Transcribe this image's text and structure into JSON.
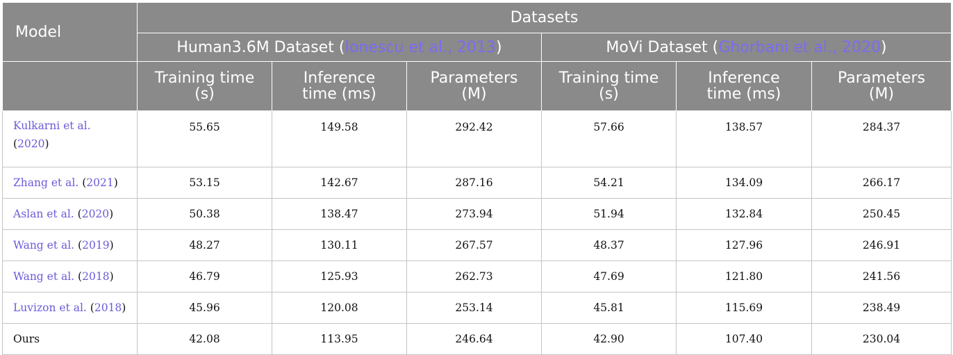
{
  "header": {
    "model_label": "Model",
    "datasets_label": "Datasets",
    "groups": [
      {
        "name": "Human3.6M Dataset",
        "cite": "Ionescu et al., 2013"
      },
      {
        "name": "MoVi Dataset",
        "cite": "Ghorbani et al., 2020"
      }
    ],
    "metrics": [
      {
        "line1": "Training time",
        "line2": "(s)"
      },
      {
        "line1": "Inference",
        "line2": "time (ms)"
      },
      {
        "line1": "Parameters",
        "line2": "(M)"
      },
      {
        "line1": "Training time",
        "line2": "(s)"
      },
      {
        "line1": "Inference",
        "line2": "time (ms)"
      },
      {
        "line1": "Parameters",
        "line2": "(M)"
      }
    ]
  },
  "rows": [
    {
      "author": "Kulkarni et al.",
      "year": "2020",
      "values": [
        "55.65",
        "149.58",
        "292.42",
        "57.66",
        "138.57",
        "284.37"
      ]
    },
    {
      "author": "Zhang et al.",
      "year": "2021",
      "values": [
        "53.15",
        "142.67",
        "287.16",
        "54.21",
        "134.09",
        "266.17"
      ]
    },
    {
      "author": "Aslan et al.",
      "year": "2020",
      "values": [
        "50.38",
        "138.47",
        "273.94",
        "51.94",
        "132.84",
        "250.45"
      ]
    },
    {
      "author": "Wang et al.",
      "year": "2019",
      "values": [
        "48.27",
        "130.11",
        "267.57",
        "48.37",
        "127.96",
        "246.91"
      ]
    },
    {
      "author": "Wang et al.",
      "year": "2018",
      "values": [
        "46.79",
        "125.93",
        "262.73",
        "47.69",
        "121.80",
        "241.56"
      ]
    },
    {
      "author": "Luvizon et al.",
      "year": "2018",
      "values": [
        "45.96",
        "120.08",
        "253.14",
        "45.81",
        "115.69",
        "238.49"
      ]
    },
    {
      "author": "Ours",
      "year": "",
      "values": [
        "42.08",
        "113.95",
        "246.64",
        "42.90",
        "107.40",
        "230.04"
      ]
    }
  ]
}
